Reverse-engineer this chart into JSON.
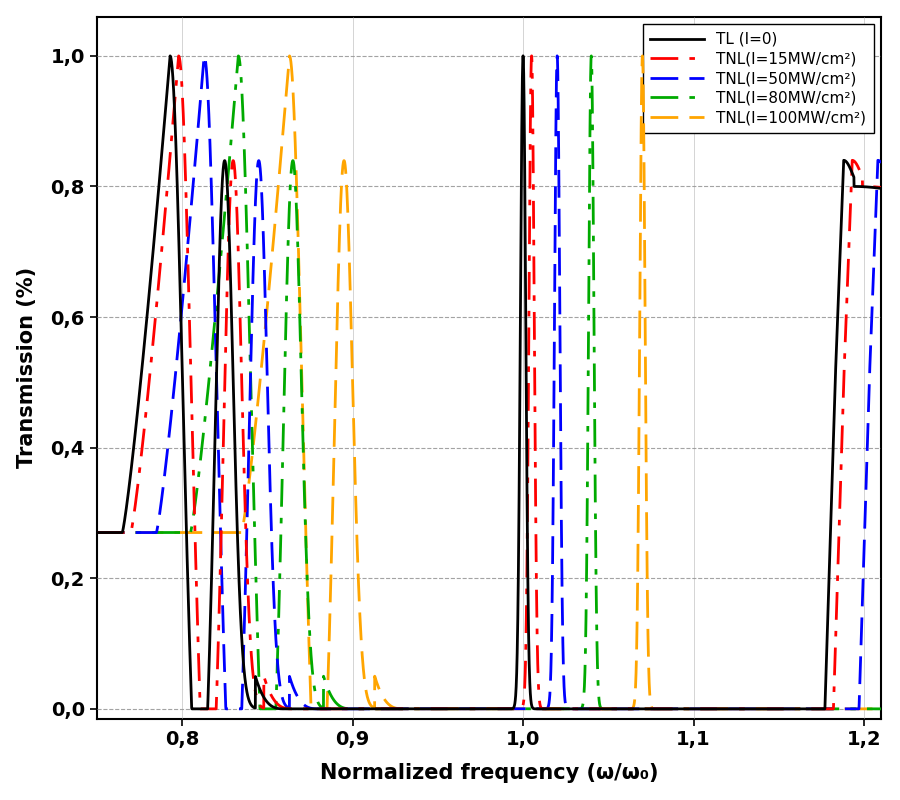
{
  "xlabel": "Normalized frequency (ω/ω₀)",
  "ylabel": "Transmission (%)",
  "xlim": [
    0.75,
    1.21
  ],
  "ylim": [
    -0.015,
    1.06
  ],
  "yticks": [
    0.0,
    0.2,
    0.4,
    0.6,
    0.8,
    1.0
  ],
  "ytick_labels": [
    "0,0",
    "0,2",
    "0,4",
    "0,6",
    "0,8",
    "1,0"
  ],
  "xticks": [
    0.8,
    0.9,
    1.0,
    1.1,
    1.2
  ],
  "xtick_labels": [
    "0,8",
    "0,9",
    "1,0",
    "1,1",
    "1,2"
  ],
  "legend_labels": [
    "TL (I=0)",
    "TNL(I=15MW/cm²)",
    "TNL(I=50MW/cm²)",
    "TNL(I=80MW/cm²)",
    "TNL(I=100MW/cm²)"
  ],
  "line_colors": [
    "#000000",
    "#ff0000",
    "#0000ff",
    "#00aa00",
    "#ffa500"
  ],
  "line_widths": [
    2.0,
    2.0,
    2.0,
    2.0,
    2.0
  ],
  "figsize": [
    9.0,
    8.0
  ],
  "dpi": 100,
  "shifts": [
    0.0,
    0.005,
    0.02,
    0.04,
    0.07
  ]
}
